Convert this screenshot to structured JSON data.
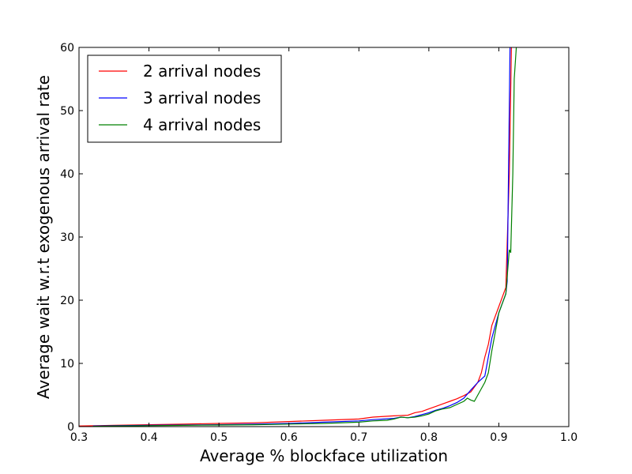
{
  "chart_data": {
    "type": "line",
    "title": "",
    "xlabel": "Average % blockface utilization",
    "ylabel": "Average wait w.r.t exogenous arrival rate",
    "xlim": [
      0.3,
      1.0
    ],
    "ylim": [
      0,
      60
    ],
    "x_ticks": [
      0.3,
      0.4,
      0.5,
      0.6,
      0.7,
      0.8,
      0.9,
      1.0
    ],
    "x_tick_labels": [
      "0.3",
      "0.4",
      "0.5",
      "0.6",
      "0.7",
      "0.8",
      "0.9",
      "1.0"
    ],
    "y_ticks": [
      0,
      10,
      20,
      30,
      40,
      50,
      60
    ],
    "y_tick_labels": [
      "0",
      "10",
      "20",
      "30",
      "40",
      "50",
      "60"
    ],
    "grid": false,
    "legend_position": "top-left",
    "series": [
      {
        "name": "2 arrival nodes",
        "color": "#ff0000",
        "x": [
          0.3,
          0.35,
          0.4,
          0.45,
          0.5,
          0.55,
          0.6,
          0.65,
          0.7,
          0.72,
          0.75,
          0.77,
          0.78,
          0.79,
          0.8,
          0.81,
          0.82,
          0.83,
          0.84,
          0.85,
          0.86,
          0.87,
          0.875,
          0.88,
          0.885,
          0.89,
          0.9,
          0.91,
          0.915,
          0.918
        ],
        "y": [
          0.1,
          0.2,
          0.3,
          0.4,
          0.5,
          0.6,
          0.8,
          1.0,
          1.2,
          1.5,
          1.7,
          1.8,
          2.2,
          2.4,
          2.8,
          3.2,
          3.6,
          4.0,
          4.4,
          4.9,
          5.5,
          7.0,
          8.5,
          11.0,
          13.0,
          16.0,
          19.0,
          22.0,
          40.0,
          60.0
        ]
      },
      {
        "name": "3 arrival nodes",
        "color": "#0000ff",
        "x": [
          0.32,
          0.35,
          0.4,
          0.45,
          0.5,
          0.55,
          0.6,
          0.65,
          0.7,
          0.72,
          0.75,
          0.76,
          0.77,
          0.78,
          0.79,
          0.8,
          0.81,
          0.82,
          0.83,
          0.84,
          0.85,
          0.86,
          0.87,
          0.88,
          0.89,
          0.9,
          0.91,
          0.912,
          0.916
        ],
        "y": [
          0.1,
          0.15,
          0.2,
          0.25,
          0.3,
          0.4,
          0.5,
          0.7,
          0.9,
          1.1,
          1.3,
          1.5,
          1.4,
          1.6,
          1.9,
          2.2,
          2.6,
          2.9,
          3.3,
          3.8,
          4.5,
          5.8,
          7.0,
          8.0,
          14.0,
          18.0,
          21.0,
          23.0,
          60.0
        ]
      },
      {
        "name": "4 arrival nodes",
        "color": "#008000",
        "x": [
          0.32,
          0.35,
          0.4,
          0.45,
          0.5,
          0.55,
          0.6,
          0.65,
          0.7,
          0.72,
          0.74,
          0.75,
          0.76,
          0.77,
          0.78,
          0.79,
          0.8,
          0.81,
          0.82,
          0.83,
          0.84,
          0.85,
          0.855,
          0.86,
          0.865,
          0.87,
          0.875,
          0.88,
          0.885,
          0.89,
          0.9,
          0.91,
          0.915,
          0.917,
          0.92,
          0.922,
          0.925
        ],
        "y": [
          0.05,
          0.1,
          0.15,
          0.2,
          0.25,
          0.3,
          0.4,
          0.5,
          0.7,
          0.9,
          1.0,
          1.2,
          1.5,
          1.4,
          1.5,
          1.7,
          2.0,
          2.5,
          2.8,
          3.0,
          3.5,
          4.0,
          4.5,
          4.2,
          4.0,
          5.0,
          6.0,
          7.0,
          8.5,
          12.0,
          18.0,
          21.0,
          28.0,
          27.5,
          40.0,
          55.0,
          60.0
        ]
      }
    ]
  }
}
